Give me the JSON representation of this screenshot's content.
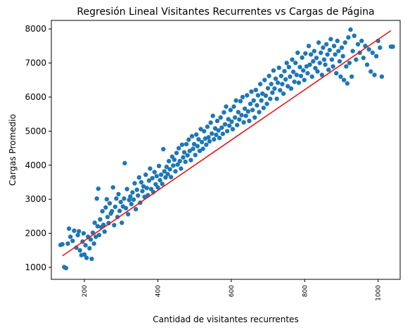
{
  "chart_data": {
    "type": "scatter",
    "title": "Regresión Lineal Visitantes Recurrentes vs Cargas de Página",
    "xlabel": "Cantidad de visitantes recurrentes",
    "ylabel": "Cargas Promedio",
    "xlim": [
      110,
      1060
    ],
    "ylim": [
      650,
      8250
    ],
    "x_ticks": [
      200,
      400,
      600,
      800,
      1000
    ],
    "x_tick_labels": [
      "200",
      "400",
      "600",
      "800",
      "1000"
    ],
    "y_ticks": [
      1000,
      2000,
      3000,
      4000,
      5000,
      6000,
      7000,
      8000
    ],
    "y_tick_labels": [
      "1000",
      "2000",
      "3000",
      "4000",
      "5000",
      "6000",
      "7000",
      "8000"
    ],
    "point_color": "#1f77b4",
    "line_color": "#e41a1c",
    "regression_line": {
      "x": [
        140,
        1035
      ],
      "y": [
        1340,
        7950
      ]
    },
    "series": [
      {
        "points": [
          [
            135,
            1660
          ],
          [
            140,
            1680
          ],
          [
            145,
            1010
          ],
          [
            150,
            980
          ],
          [
            155,
            1700
          ],
          [
            158,
            2140
          ],
          [
            162,
            1900
          ],
          [
            168,
            1780
          ],
          [
            172,
            2080
          ],
          [
            178,
            1580
          ],
          [
            182,
            1950
          ],
          [
            185,
            2060
          ],
          [
            188,
            1500
          ],
          [
            192,
            1360
          ],
          [
            195,
            1760
          ],
          [
            198,
            2000
          ],
          [
            200,
            1380
          ],
          [
            203,
            1650
          ],
          [
            206,
            1280
          ],
          [
            210,
            1900
          ],
          [
            214,
            1560
          ],
          [
            217,
            1820
          ],
          [
            220,
            1250
          ],
          [
            223,
            2020
          ],
          [
            226,
            1700
          ],
          [
            228,
            2310
          ],
          [
            231,
            1900
          ],
          [
            234,
            3020
          ],
          [
            236,
            2210
          ],
          [
            238,
            3310
          ],
          [
            240,
            1950
          ],
          [
            243,
            2410
          ],
          [
            246,
            2180
          ],
          [
            249,
            2650
          ],
          [
            252,
            2250
          ],
          [
            255,
            2050
          ],
          [
            258,
            2760
          ],
          [
            261,
            3000
          ],
          [
            263,
            2480
          ],
          [
            266,
            2300
          ],
          [
            269,
            2880
          ],
          [
            272,
            2580
          ],
          [
            275,
            2650
          ],
          [
            278,
            3350
          ],
          [
            281,
            2240
          ],
          [
            284,
            2780
          ],
          [
            287,
            3020
          ],
          [
            290,
            2480
          ],
          [
            293,
            3150
          ],
          [
            296,
            2660
          ],
          [
            299,
            2920
          ],
          [
            302,
            2310
          ],
          [
            305,
            2790
          ],
          [
            308,
            3020
          ],
          [
            310,
            4060
          ],
          [
            313,
            2740
          ],
          [
            316,
            3300
          ],
          [
            319,
            2560
          ],
          [
            322,
            2980
          ],
          [
            325,
            3080
          ],
          [
            328,
            2860
          ],
          [
            331,
            3200
          ],
          [
            334,
            2990
          ],
          [
            337,
            3470
          ],
          [
            340,
            2710
          ],
          [
            343,
            3280
          ],
          [
            346,
            3110
          ],
          [
            349,
            3640
          ],
          [
            352,
            2900
          ],
          [
            355,
            3500
          ],
          [
            358,
            3240
          ],
          [
            361,
            3380
          ],
          [
            364,
            3070
          ],
          [
            367,
            3720
          ],
          [
            370,
            3330
          ],
          [
            373,
            3120
          ],
          [
            376,
            3550
          ],
          [
            379,
            3900
          ],
          [
            382,
            3300
          ],
          [
            385,
            3620
          ],
          [
            388,
            3210
          ],
          [
            391,
            3800
          ],
          [
            394,
            3440
          ],
          [
            397,
            3680
          ],
          [
            400,
            3350
          ],
          [
            403,
            3980
          ],
          [
            406,
            3560
          ],
          [
            409,
            3720
          ],
          [
            412,
            3450
          ],
          [
            415,
            4470
          ],
          [
            418,
            3820
          ],
          [
            421,
            3640
          ],
          [
            424,
            3950
          ],
          [
            427,
            3740
          ],
          [
            430,
            4120
          ],
          [
            433,
            3880
          ],
          [
            436,
            3650
          ],
          [
            439,
            4250
          ],
          [
            442,
            3990
          ],
          [
            445,
            4160
          ],
          [
            448,
            3820
          ],
          [
            451,
            4360
          ],
          [
            454,
            4020
          ],
          [
            457,
            4500
          ],
          [
            460,
            4120
          ],
          [
            463,
            3900
          ],
          [
            466,
            4600
          ],
          [
            469,
            4230
          ],
          [
            472,
            4380
          ],
          [
            475,
            4100
          ],
          [
            478,
            4620
          ],
          [
            481,
            4290
          ],
          [
            484,
            4750
          ],
          [
            487,
            4420
          ],
          [
            490,
            4150
          ],
          [
            493,
            4850
          ],
          [
            496,
            4480
          ],
          [
            499,
            4620
          ],
          [
            502,
            4300
          ],
          [
            505,
            4900
          ],
          [
            508,
            4560
          ],
          [
            511,
            4760
          ],
          [
            514,
            4420
          ],
          [
            517,
            5060
          ],
          [
            520,
            4680
          ],
          [
            523,
            4480
          ],
          [
            526,
            5000
          ],
          [
            529,
            4780
          ],
          [
            532,
            4600
          ],
          [
            535,
            5130
          ],
          [
            538,
            4820
          ],
          [
            541,
            4700
          ],
          [
            544,
            5250
          ],
          [
            547,
            4930
          ],
          [
            550,
            5450
          ],
          [
            553,
            4760
          ],
          [
            556,
            5080
          ],
          [
            559,
            4890
          ],
          [
            562,
            5300
          ],
          [
            565,
            5020
          ],
          [
            568,
            4800
          ],
          [
            571,
            5400
          ],
          [
            574,
            5100
          ],
          [
            577,
            4920
          ],
          [
            580,
            5550
          ],
          [
            583,
            5200
          ],
          [
            586,
            5720
          ],
          [
            589,
            5000
          ],
          [
            592,
            5350
          ],
          [
            595,
            5160
          ],
          [
            598,
            5620
          ],
          [
            601,
            5280
          ],
          [
            604,
            5060
          ],
          [
            607,
            5720
          ],
          [
            610,
            5400
          ],
          [
            613,
            5900
          ],
          [
            616,
            5180
          ],
          [
            619,
            5560
          ],
          [
            622,
            5340
          ],
          [
            625,
            5880
          ],
          [
            628,
            5470
          ],
          [
            631,
            6000
          ],
          [
            634,
            5260
          ],
          [
            637,
            5660
          ],
          [
            640,
            5450
          ],
          [
            643,
            6050
          ],
          [
            646,
            5580
          ],
          [
            649,
            5300
          ],
          [
            652,
            5800
          ],
          [
            655,
            6160
          ],
          [
            658,
            5620
          ],
          [
            661,
            5900
          ],
          [
            664,
            5400
          ],
          [
            667,
            6210
          ],
          [
            670,
            5760
          ],
          [
            673,
            6050
          ],
          [
            676,
            5560
          ],
          [
            679,
            6380
          ],
          [
            682,
            5900
          ],
          [
            685,
            6100
          ],
          [
            688,
            5680
          ],
          [
            691,
            6500
          ],
          [
            694,
            6040
          ],
          [
            697,
            5800
          ],
          [
            700,
            6260
          ],
          [
            703,
            6620
          ],
          [
            706,
            5950
          ],
          [
            709,
            6380
          ],
          [
            712,
            6130
          ],
          [
            715,
            6780
          ],
          [
            718,
            6250
          ],
          [
            721,
            6540
          ],
          [
            724,
            5950
          ],
          [
            727,
            6420
          ],
          [
            730,
            6860
          ],
          [
            733,
            6200
          ],
          [
            736,
            6620
          ],
          [
            739,
            6380
          ],
          [
            742,
            6100
          ],
          [
            745,
            6760
          ],
          [
            748,
            6520
          ],
          [
            751,
            7000
          ],
          [
            754,
            6320
          ],
          [
            757,
            6880
          ],
          [
            760,
            6600
          ],
          [
            763,
            6250
          ],
          [
            766,
            7100
          ],
          [
            769,
            6740
          ],
          [
            772,
            6450
          ],
          [
            775,
            7000
          ],
          [
            778,
            6650
          ],
          [
            781,
            7300
          ],
          [
            784,
            6420
          ],
          [
            787,
            6880
          ],
          [
            790,
            6620
          ],
          [
            793,
            7160
          ],
          [
            796,
            6780
          ],
          [
            799,
            6500
          ],
          [
            802,
            7280
          ],
          [
            805,
            6900
          ],
          [
            808,
            6700
          ],
          [
            811,
            7500
          ],
          [
            814,
            6950
          ],
          [
            817,
            7250
          ],
          [
            820,
            6600
          ],
          [
            823,
            7050
          ],
          [
            826,
            7350
          ],
          [
            829,
            6850
          ],
          [
            832,
            7150
          ],
          [
            835,
            6750
          ],
          [
            838,
            7600
          ],
          [
            841,
            7000
          ],
          [
            844,
            7300
          ],
          [
            847,
            6650
          ],
          [
            850,
            7450
          ],
          [
            853,
            7100
          ],
          [
            856,
            6950
          ],
          [
            859,
            7550
          ],
          [
            862,
            7250
          ],
          [
            865,
            6800
          ],
          [
            868,
            7380
          ],
          [
            871,
            7700
          ],
          [
            874,
            7100
          ],
          [
            877,
            6900
          ],
          [
            880,
            7500
          ],
          [
            883,
            7250
          ],
          [
            886,
            6700
          ],
          [
            889,
            7650
          ],
          [
            892,
            7350
          ],
          [
            895,
            7050
          ],
          [
            898,
            6600
          ],
          [
            901,
            7450
          ],
          [
            904,
            7200
          ],
          [
            907,
            6500
          ],
          [
            910,
            7600
          ],
          [
            913,
            6900
          ],
          [
            916,
            6400
          ],
          [
            919,
            7750
          ],
          [
            922,
            7000
          ],
          [
            925,
            7980
          ],
          [
            928,
            6600
          ],
          [
            931,
            7350
          ],
          [
            935,
            7800
          ],
          [
            940,
            7100
          ],
          [
            945,
            7550
          ],
          [
            950,
            7300
          ],
          [
            955,
            7650
          ],
          [
            960,
            7150
          ],
          [
            965,
            7500
          ],
          [
            970,
            6950
          ],
          [
            975,
            7400
          ],
          [
            980,
            6750
          ],
          [
            985,
            7300
          ],
          [
            990,
            6650
          ],
          [
            995,
            7200
          ],
          [
            1000,
            7650
          ],
          [
            1005,
            7450
          ],
          [
            1010,
            6600
          ],
          [
            1035,
            7480
          ],
          [
            1040,
            7480
          ]
        ]
      }
    ]
  }
}
